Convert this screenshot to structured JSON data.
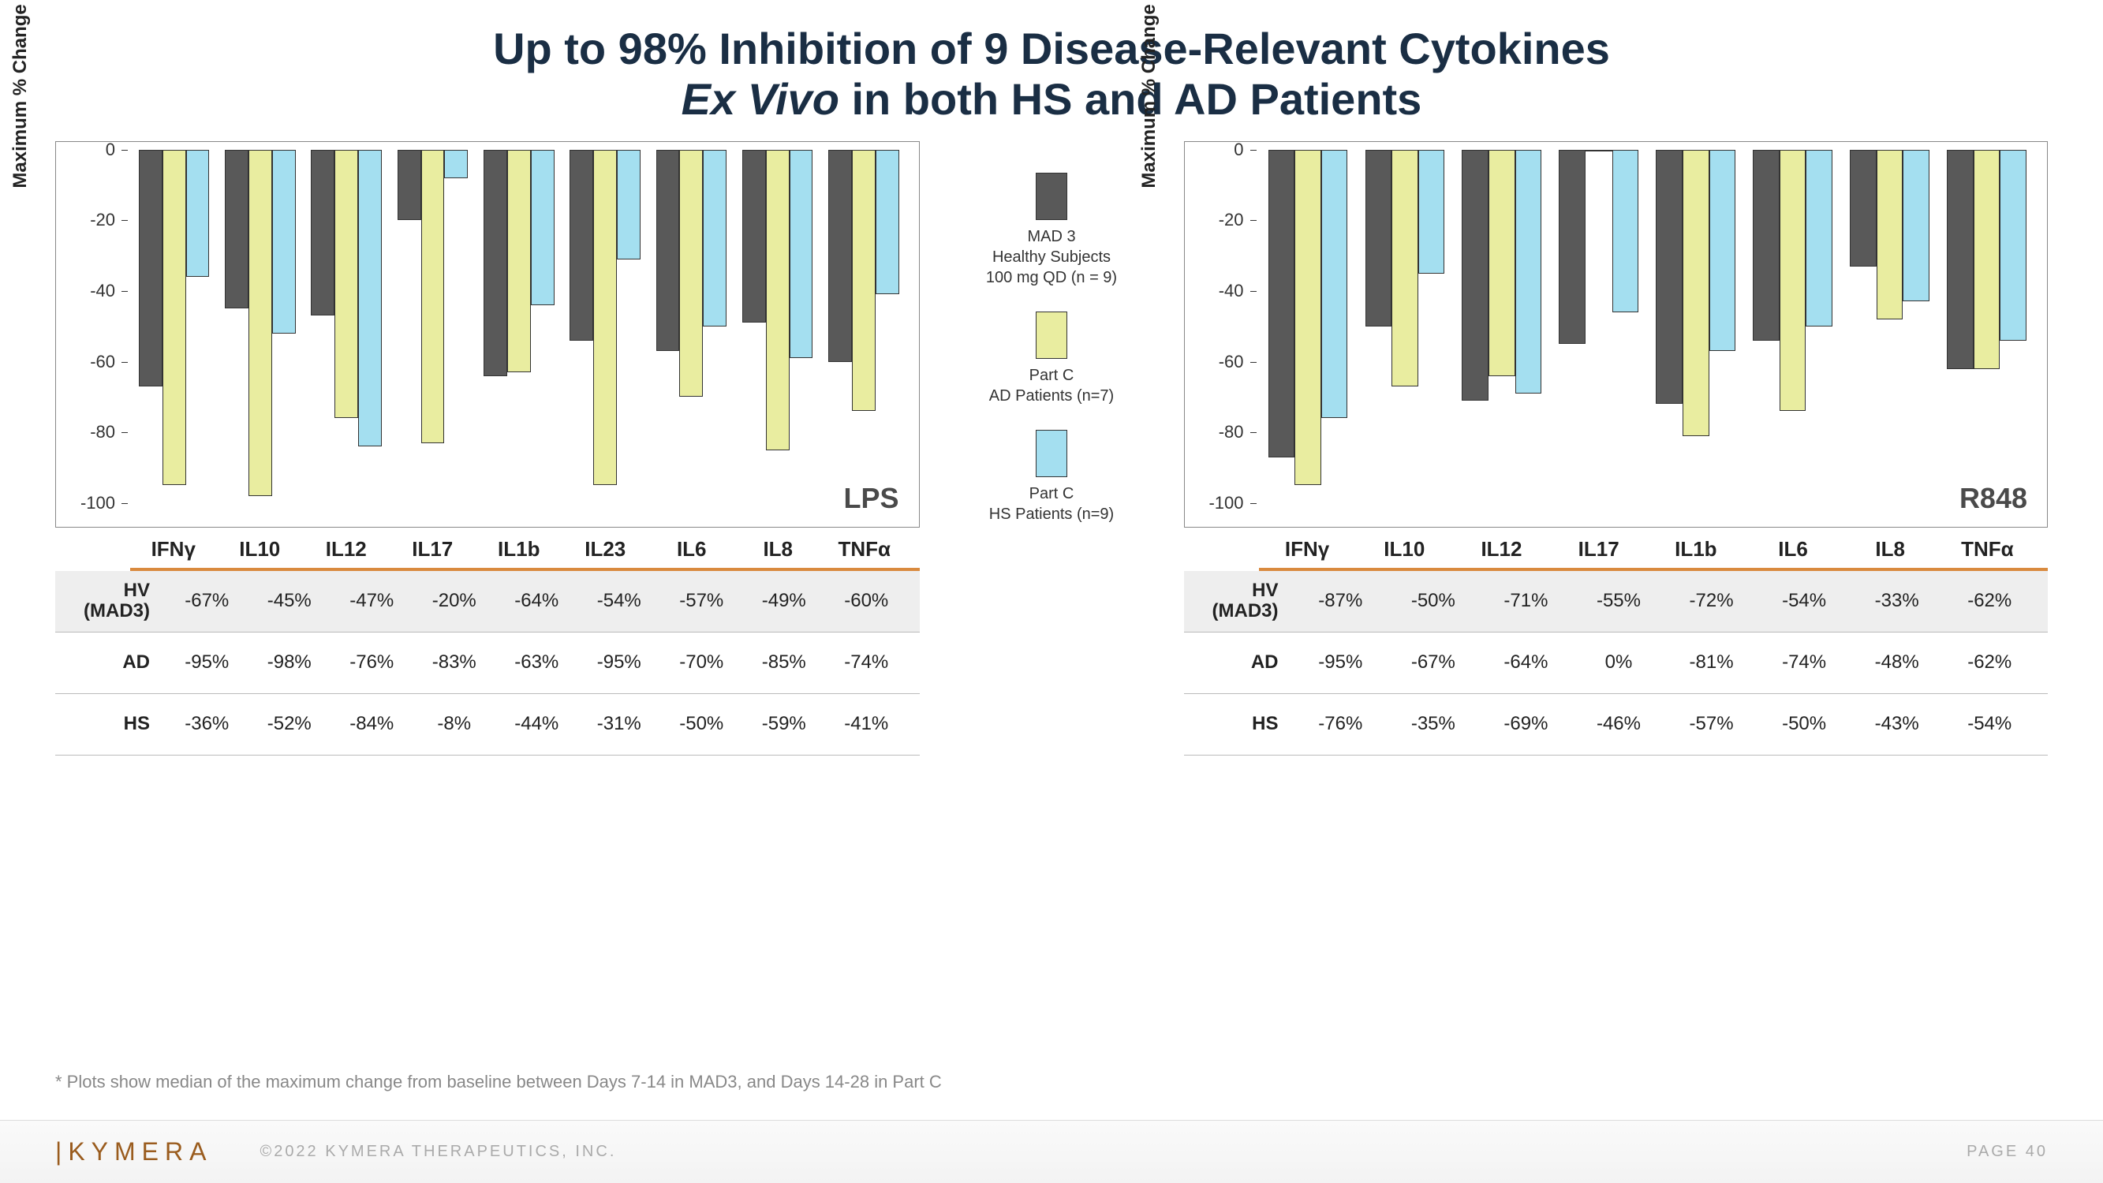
{
  "title_line1": "Up to 98% Inhibition of 9 Disease-Relevant Cytokines",
  "title_line2_italic": "Ex Vivo",
  "title_line2_rest": " in both HS and AD Patients",
  "y_axis_label": "Maximum % Change from Baseline",
  "ylim": [
    0,
    -100
  ],
  "yticks": [
    0,
    -20,
    -40,
    -60,
    -80,
    -100
  ],
  "series": [
    {
      "key": "mad3",
      "color": "#595959",
      "legend": [
        "MAD 3",
        "Healthy Subjects",
        "100 mg QD (n = 9)"
      ]
    },
    {
      "key": "ad",
      "color": "#e9eda0",
      "legend": [
        "Part C",
        "AD Patients (n=7)"
      ]
    },
    {
      "key": "hs",
      "color": "#a4dff0",
      "legend": [
        "Part C",
        "HS Patients (n=9)"
      ]
    }
  ],
  "charts": [
    {
      "label": "LPS",
      "categories": [
        "IFNγ",
        "IL10",
        "IL12",
        "IL17",
        "IL1b",
        "IL23",
        "IL6",
        "IL8",
        "TNFα"
      ],
      "bars": {
        "mad3": [
          -67,
          -45,
          -47,
          -20,
          -64,
          -54,
          -57,
          -49,
          -60
        ],
        "ad": [
          -95,
          -98,
          -76,
          -83,
          -63,
          -95,
          -70,
          -85,
          -74
        ],
        "hs": [
          -36,
          -52,
          -84,
          -8,
          -44,
          -31,
          -50,
          -59,
          -41
        ]
      },
      "table_rows": [
        {
          "head": "HV\n(MAD3)",
          "key": "mad3",
          "alt": true
        },
        {
          "head": "AD",
          "key": "ad",
          "alt": false
        },
        {
          "head": "HS",
          "key": "hs",
          "alt": false
        }
      ]
    },
    {
      "label": "R848",
      "categories": [
        "IFNγ",
        "IL10",
        "IL12",
        "IL17",
        "IL1b",
        "IL6",
        "IL8",
        "TNFα"
      ],
      "bars": {
        "mad3": [
          -87,
          -50,
          -71,
          -55,
          -72,
          -54,
          -33,
          -62
        ],
        "ad": [
          -95,
          -67,
          -64,
          0,
          -81,
          -74,
          -48,
          -62
        ],
        "hs": [
          -76,
          -35,
          -69,
          -46,
          -57,
          -50,
          -43,
          -54
        ]
      },
      "table_rows": [
        {
          "head": "HV\n(MAD3)",
          "key": "mad3",
          "alt": true
        },
        {
          "head": "AD",
          "key": "ad",
          "alt": false
        },
        {
          "head": "HS",
          "key": "hs",
          "alt": false
        }
      ]
    }
  ],
  "bar_style": {
    "group_gap_pct": 18,
    "bar_border": "#333333"
  },
  "footnote": "* Plots show median of the maximum change from baseline between Days 7-14 in MAD3, and Days 14-28 in Part C",
  "footer": {
    "logo": "KYMERA",
    "copyright": "©2022 KYMERA THERAPEUTICS, INC.",
    "page": "PAGE 40"
  }
}
